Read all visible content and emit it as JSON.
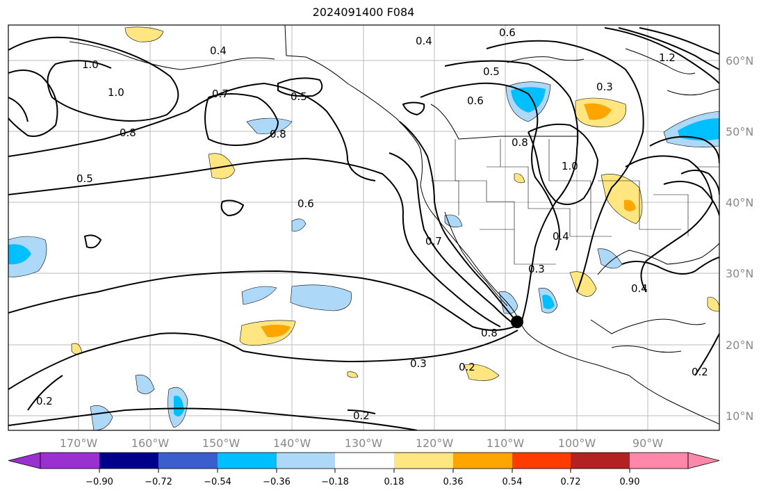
{
  "title": "2024091400 F084",
  "map": {
    "lat_labels": [
      "60°N",
      "50°N",
      "40°N",
      "30°N",
      "20°N",
      "10°N"
    ],
    "lon_labels": [
      "170°W",
      "160°W",
      "150°W",
      "140°W",
      "130°W",
      "120°W",
      "110°W",
      "100°W",
      "90°W"
    ],
    "contour_labels": [
      "0.6",
      "0.4",
      "1.2",
      "1.0",
      "0.4",
      "1.0",
      "0.5",
      "0.7",
      "0.5",
      "0.3",
      "0.6",
      "0.8",
      "0.8",
      "0.5",
      "0.6",
      "0.8",
      "1.0",
      "0.7",
      "0.3",
      "0.4",
      "0.8",
      "0.3",
      "0.2",
      "0.2",
      "0.2",
      "0.4",
      "0.2"
    ],
    "marker": "storm-center-dot"
  },
  "colorbar": {
    "ticks": [
      "−0.90",
      "−0.72",
      "−0.54",
      "−0.36",
      "−0.18",
      "0.18",
      "0.36",
      "0.54",
      "0.72",
      "0.90"
    ],
    "colors": [
      "#9b30d0",
      "#00008b",
      "#3a5fcd",
      "#00bfff",
      "#add8f7",
      "#ffffff",
      "#ffe680",
      "#ffa500",
      "#ff3c00",
      "#b22222",
      "#ff88aa"
    ]
  }
}
